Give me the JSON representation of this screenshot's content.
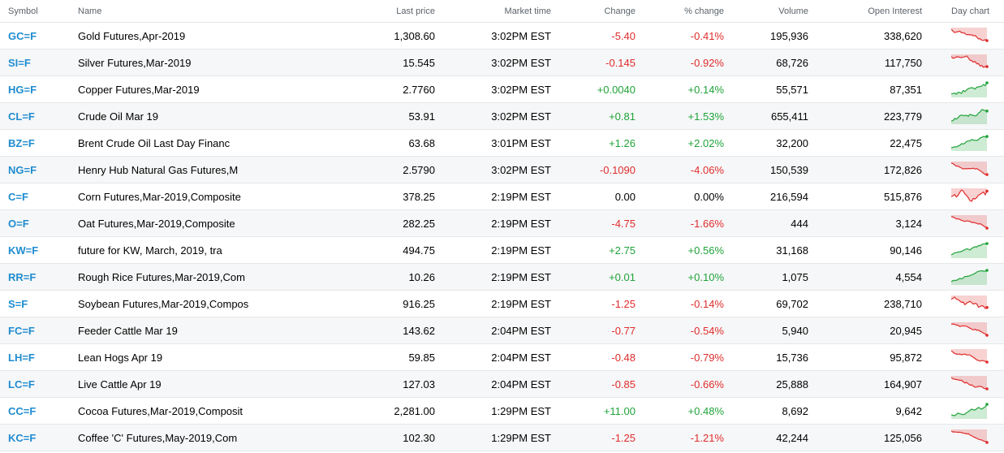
{
  "columns": {
    "symbol": "Symbol",
    "name": "Name",
    "last_price": "Last price",
    "market_time": "Market time",
    "change": "Change",
    "pct_change": "% change",
    "volume": "Volume",
    "open_interest": "Open Interest",
    "day_chart": "Day chart"
  },
  "colors": {
    "symbol": "#1f8ccf",
    "up": "#20a33a",
    "down": "#e02c2c",
    "flat": "#000000"
  },
  "rows": [
    {
      "symbol": "GC=F",
      "name": "Gold Futures,Apr-2019",
      "last": "1,308.60",
      "time": "3:02PM EST",
      "change": "-5.40",
      "pct": "-0.41%",
      "volume": "195,936",
      "oi": "338,620",
      "trend": "down"
    },
    {
      "symbol": "SI=F",
      "name": "Silver Futures,Mar-2019",
      "last": "15.545",
      "time": "3:02PM EST",
      "change": "-0.145",
      "pct": "-0.92%",
      "volume": "68,726",
      "oi": "117,750",
      "trend": "down"
    },
    {
      "symbol": "HG=F",
      "name": "Copper Futures,Mar-2019",
      "last": "2.7760",
      "time": "3:02PM EST",
      "change": "+0.0040",
      "pct": "+0.14%",
      "volume": "55,571",
      "oi": "87,351",
      "trend": "up"
    },
    {
      "symbol": "CL=F",
      "name": "Crude Oil Mar 19",
      "last": "53.91",
      "time": "3:02PM EST",
      "change": "+0.81",
      "pct": "+1.53%",
      "volume": "655,411",
      "oi": "223,779",
      "trend": "up"
    },
    {
      "symbol": "BZ=F",
      "name": "Brent Crude Oil Last Day Financ",
      "last": "63.68",
      "time": "3:01PM EST",
      "change": "+1.26",
      "pct": "+2.02%",
      "volume": "32,200",
      "oi": "22,475",
      "trend": "up"
    },
    {
      "symbol": "NG=F",
      "name": "Henry Hub Natural Gas Futures,M",
      "last": "2.5790",
      "time": "3:02PM EST",
      "change": "-0.1090",
      "pct": "-4.06%",
      "volume": "150,539",
      "oi": "172,826",
      "trend": "down"
    },
    {
      "symbol": "C=F",
      "name": "Corn Futures,Mar-2019,Composite",
      "last": "378.25",
      "time": "2:19PM EST",
      "change": "0.00",
      "pct": "0.00%",
      "volume": "216,594",
      "oi": "515,876",
      "trend": "flat"
    },
    {
      "symbol": "O=F",
      "name": "Oat Futures,Mar-2019,Composite",
      "last": "282.25",
      "time": "2:19PM EST",
      "change": "-4.75",
      "pct": "-1.66%",
      "volume": "444",
      "oi": "3,124",
      "trend": "down"
    },
    {
      "symbol": "KW=F",
      "name": "future for KW, March, 2019, tra",
      "last": "494.75",
      "time": "2:19PM EST",
      "change": "+2.75",
      "pct": "+0.56%",
      "volume": "31,168",
      "oi": "90,146",
      "trend": "up"
    },
    {
      "symbol": "RR=F",
      "name": "Rough Rice Futures,Mar-2019,Com",
      "last": "10.26",
      "time": "2:19PM EST",
      "change": "+0.01",
      "pct": "+0.10%",
      "volume": "1,075",
      "oi": "4,554",
      "trend": "up"
    },
    {
      "symbol": "S=F",
      "name": "Soybean Futures,Mar-2019,Compos",
      "last": "916.25",
      "time": "2:19PM EST",
      "change": "-1.25",
      "pct": "-0.14%",
      "volume": "69,702",
      "oi": "238,710",
      "trend": "down"
    },
    {
      "symbol": "FC=F",
      "name": "Feeder Cattle Mar 19",
      "last": "143.62",
      "time": "2:04PM EST",
      "change": "-0.77",
      "pct": "-0.54%",
      "volume": "5,940",
      "oi": "20,945",
      "trend": "down"
    },
    {
      "symbol": "LH=F",
      "name": "Lean Hogs Apr 19",
      "last": "59.85",
      "time": "2:04PM EST",
      "change": "-0.48",
      "pct": "-0.79%",
      "volume": "15,736",
      "oi": "95,872",
      "trend": "down"
    },
    {
      "symbol": "LC=F",
      "name": "Live Cattle Apr 19",
      "last": "127.03",
      "time": "2:04PM EST",
      "change": "-0.85",
      "pct": "-0.66%",
      "volume": "25,888",
      "oi": "164,907",
      "trend": "down"
    },
    {
      "symbol": "CC=F",
      "name": "Cocoa Futures,Mar-2019,Composit",
      "last": "2,281.00",
      "time": "1:29PM EST",
      "change": "+11.00",
      "pct": "+0.48%",
      "volume": "8,692",
      "oi": "9,642",
      "trend": "up"
    },
    {
      "symbol": "KC=F",
      "name": "Coffee 'C' Futures,May-2019,Com",
      "last": "102.30",
      "time": "1:29PM EST",
      "change": "-1.25",
      "pct": "-1.21%",
      "volume": "42,244",
      "oi": "125,056",
      "trend": "down"
    }
  ]
}
